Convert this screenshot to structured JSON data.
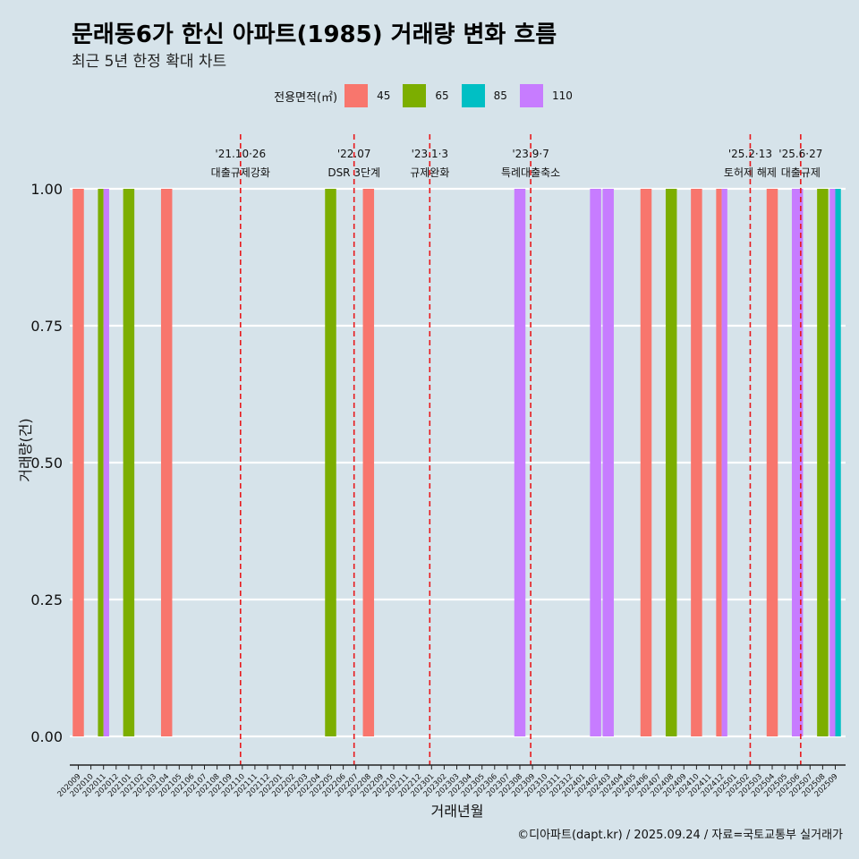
{
  "title": "문래동6가 한신 아파트(1985) 거래량 변화 흐름",
  "subtitle": "최근 5년 한정 확대 차트",
  "caption": "©디아파트(dapt.kr) / 2025.09.24 / 자료=국토교통부 실거래가",
  "colors": {
    "45": "#f8766d",
    "65": "#7cae00",
    "85": "#00bfc4",
    "110": "#c77cff",
    "event_line": "#e8191c"
  },
  "legend": {
    "title": "전용면적(㎡)",
    "items": [
      {
        "label": "45",
        "color": "#f8766d"
      },
      {
        "label": "65",
        "color": "#7cae00"
      },
      {
        "label": "85",
        "color": "#00bfc4"
      },
      {
        "label": "110",
        "color": "#c77cff"
      }
    ]
  },
  "chart_data": {
    "type": "bar",
    "xlabel": "거래년월",
    "ylabel": "거래량(건)",
    "ylim": [
      0,
      1
    ],
    "yticks": [
      "0.00",
      "0.25",
      "0.50",
      "0.75",
      "1.00"
    ],
    "categories": [
      "202009",
      "202010",
      "202011",
      "202012",
      "202101",
      "202102",
      "202103",
      "202104",
      "202105",
      "202106",
      "202107",
      "202108",
      "202109",
      "202110",
      "202111",
      "202112",
      "202201",
      "202202",
      "202203",
      "202204",
      "202205",
      "202206",
      "202207",
      "202208",
      "202209",
      "202210",
      "202211",
      "202212",
      "202301",
      "202302",
      "202303",
      "202304",
      "202305",
      "202306",
      "202307",
      "202308",
      "202309",
      "202310",
      "202311",
      "202312",
      "202401",
      "202402",
      "202403",
      "202404",
      "202405",
      "202406",
      "202407",
      "202408",
      "202409",
      "202410",
      "202411",
      "202412",
      "202501",
      "202502",
      "202503",
      "202504",
      "202505",
      "202506",
      "202507",
      "202508",
      "202509"
    ],
    "bars": [
      {
        "month": "202009",
        "area": "45",
        "value": 1
      },
      {
        "month": "202011",
        "area": "65",
        "value": 1
      },
      {
        "month": "202011",
        "area": "110",
        "value": 1
      },
      {
        "month": "202101",
        "area": "65",
        "value": 1
      },
      {
        "month": "202104",
        "area": "45",
        "value": 1
      },
      {
        "month": "202205",
        "area": "65",
        "value": 1
      },
      {
        "month": "202208",
        "area": "45",
        "value": 1
      },
      {
        "month": "202308",
        "area": "110",
        "value": 1
      },
      {
        "month": "202402",
        "area": "110",
        "value": 1
      },
      {
        "month": "202403",
        "area": "110",
        "value": 1
      },
      {
        "month": "202406",
        "area": "45",
        "value": 1
      },
      {
        "month": "202408",
        "area": "65",
        "value": 1
      },
      {
        "month": "202410",
        "area": "45",
        "value": 1
      },
      {
        "month": "202412",
        "area": "45",
        "value": 1
      },
      {
        "month": "202412",
        "area": "110",
        "value": 1
      },
      {
        "month": "202504",
        "area": "45",
        "value": 1
      },
      {
        "month": "202506",
        "area": "110",
        "value": 1
      },
      {
        "month": "202508",
        "area": "65",
        "value": 1
      },
      {
        "month": "202509",
        "area": "110",
        "value": 1
      },
      {
        "month": "202509",
        "area": "85",
        "value": 1
      }
    ],
    "events": [
      {
        "date": "'21.10·26",
        "desc": "대출규제강화",
        "month_index": 13.0
      },
      {
        "date": "'22.07",
        "desc": "DSR 3단계",
        "month_index": 22.0
      },
      {
        "date": "'23.1·3",
        "desc": "규제완화",
        "month_index": 28.0
      },
      {
        "date": "'23.9·7",
        "desc": "특례대출축소",
        "month_index": 36.0
      },
      {
        "date": "'25.2·13",
        "desc": "토허제 해제",
        "month_index": 53.4
      },
      {
        "date": "'25.6·27",
        "desc": "대출규제",
        "month_index": 57.4
      }
    ]
  }
}
